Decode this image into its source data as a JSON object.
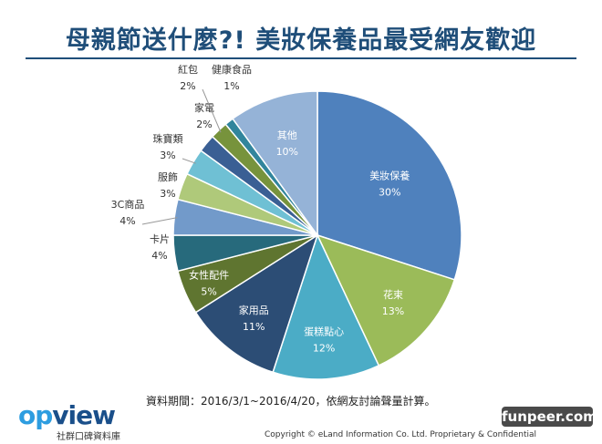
{
  "chart_data": {
    "type": "pie",
    "title": "母親節送什麼?! 美妝保養品最受網友歡迎",
    "start_angle_deg": 0,
    "direction": "clockwise",
    "slices": [
      {
        "label": "美妝保養",
        "value": 30,
        "value_label": "30%",
        "color": "#4f81bd"
      },
      {
        "label": "花束",
        "value": 13,
        "value_label": "13%",
        "color": "#9bbb59"
      },
      {
        "label": "蛋糕點心",
        "value": 12,
        "value_label": "12%",
        "color": "#4bacc6"
      },
      {
        "label": "家用品",
        "value": 11,
        "value_label": "11%",
        "color": "#2c4d75"
      },
      {
        "label": "女性配件",
        "value": 5,
        "value_label": "5%",
        "color": "#5f7530"
      },
      {
        "label": "卡片",
        "value": 4,
        "value_label": "4%",
        "color": "#276a7c"
      },
      {
        "label": "3C商品",
        "value": 4,
        "value_label": "4%",
        "color": "#729aca"
      },
      {
        "label": "服飾",
        "value": 3,
        "value_label": "3%",
        "color": "#afc97a"
      },
      {
        "label": "珠寶類",
        "value": 3,
        "value_label": "3%",
        "color": "#6fc0d4"
      },
      {
        "label": "家電",
        "value": 2,
        "value_label": "2%",
        "color": "#3a5f94"
      },
      {
        "label": "紅包",
        "value": 2,
        "value_label": "2%",
        "color": "#77933c"
      },
      {
        "label": "健康食品",
        "value": 1,
        "value_label": "1%",
        "color": "#31859c"
      },
      {
        "label": "其他",
        "value": 10,
        "value_label": "10%",
        "color": "#95b3d7"
      }
    ]
  },
  "footer": {
    "source": "資料期間：2016/3/1~2016/4/20，依網友討論聲量計算。",
    "logo_word_a": "op",
    "logo_word_b": "view",
    "logo_sub": "社群口碑資料庫",
    "copyright": "Copyright © eLand Information Co. Ltd. Proprietary & Confidential",
    "watermark": "funpeer.com"
  }
}
